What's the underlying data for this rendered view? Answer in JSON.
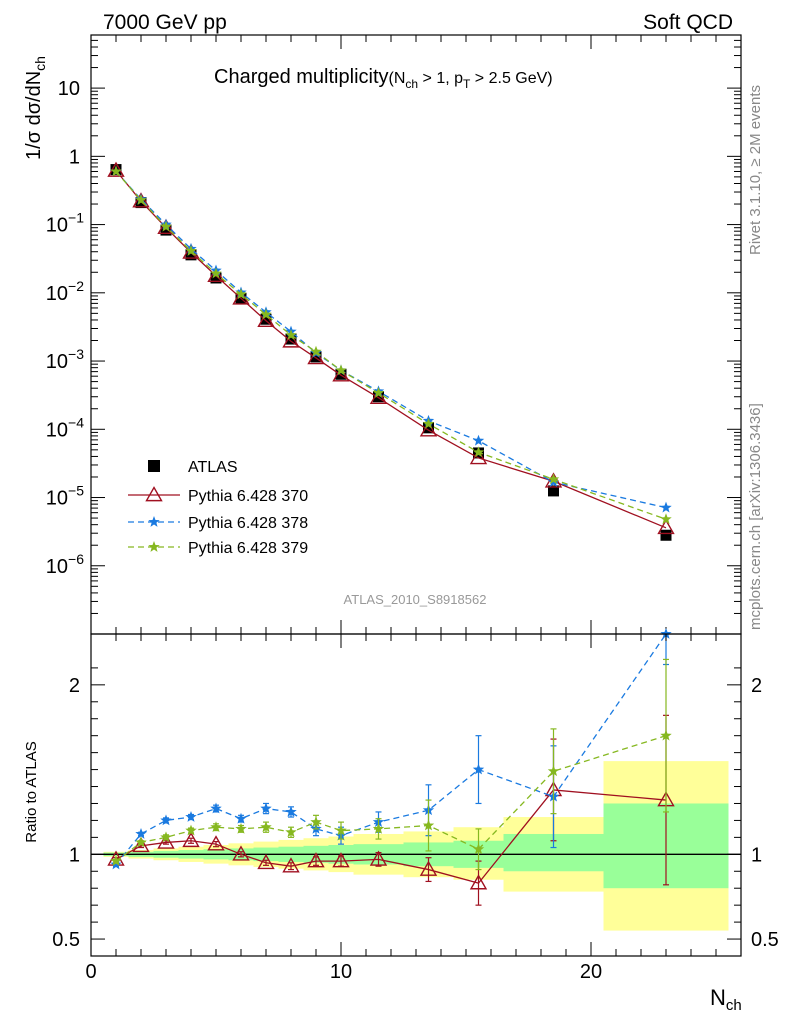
{
  "header": {
    "energy_label": "7000 GeV pp",
    "process_label": "Soft QCD"
  },
  "side_labels": {
    "rivet": "Rivet 3.1.10, ≥ 2M events",
    "mcplots": "mcplots.cern.ch [arXiv:1306.3436]"
  },
  "chart_data": {
    "type": "line",
    "title_main": "Charged multiplicity",
    "title_cond_pre": "(N",
    "title_cond_sub1": "ch",
    "title_cond_mid": " > 1, p",
    "title_cond_sub2": "T",
    "title_cond_post": " > 2.5 GeV)",
    "ylabel_main": "1/σ dσ/dN",
    "ylabel_sub": "ch",
    "ylabel_ratio": "Ratio to ATLAS",
    "xlabel": "N",
    "xlabel_sub": "ch",
    "analysis_tag": "ATLAS_2010_S8918562",
    "main_yscale": "log",
    "main_ylim": [
      1e-07,
      60
    ],
    "xlim": [
      0,
      26
    ],
    "ratio_ylim": [
      0.4,
      2.3
    ],
    "x_ticks": [
      0,
      10,
      20
    ],
    "main_y_tick_labels": [
      {
        "v": 10,
        "base": "10",
        "exp": ""
      },
      {
        "v": 1,
        "base": "1",
        "exp": ""
      },
      {
        "v": 0.1,
        "base": "10",
        "exp": "−1"
      },
      {
        "v": 0.01,
        "base": "10",
        "exp": "−2"
      },
      {
        "v": 0.001,
        "base": "10",
        "exp": "−3"
      },
      {
        "v": 0.0001,
        "base": "10",
        "exp": "−4"
      },
      {
        "v": 1e-05,
        "base": "10",
        "exp": "−5"
      },
      {
        "v": 1e-06,
        "base": "10",
        "exp": "−6"
      }
    ],
    "ratio_y_tick_labels": [
      {
        "v": 0.5,
        "label": "0.5"
      },
      {
        "v": 1,
        "label": "1"
      },
      {
        "v": 2,
        "label": "2"
      }
    ],
    "x": [
      1,
      2,
      3,
      4,
      5,
      6,
      7,
      8,
      9,
      10,
      11.5,
      13.5,
      15.5,
      18.5,
      23
    ],
    "data": {
      "name": "ATLAS",
      "values": [
        0.64,
        0.21,
        0.083,
        0.036,
        0.0165,
        0.0083,
        0.0041,
        0.0021,
        0.00115,
        0.00064,
        0.0003,
        0.000105,
        4.5e-05,
        1.25e-05,
        2.8e-06
      ],
      "ratio_bands": [
        {
          "x0": 0.5,
          "x1": 1.5,
          "y1": [
            0.99,
            1.01
          ],
          "y2": [
            0.985,
            1.015
          ]
        },
        {
          "x0": 1.5,
          "x1": 2.5,
          "y1": [
            0.985,
            1.015
          ],
          "y2": [
            0.975,
            1.025
          ]
        },
        {
          "x0": 2.5,
          "x1": 3.5,
          "y1": [
            0.98,
            1.02
          ],
          "y2": [
            0.965,
            1.035
          ]
        },
        {
          "x0": 3.5,
          "x1": 4.5,
          "y1": [
            0.975,
            1.025
          ],
          "y2": [
            0.955,
            1.045
          ]
        },
        {
          "x0": 4.5,
          "x1": 5.5,
          "y1": [
            0.97,
            1.03
          ],
          "y2": [
            0.945,
            1.055
          ]
        },
        {
          "x0": 5.5,
          "x1": 6.5,
          "y1": [
            0.965,
            1.035
          ],
          "y2": [
            0.935,
            1.065
          ]
        },
        {
          "x0": 6.5,
          "x1": 7.5,
          "y1": [
            0.96,
            1.04
          ],
          "y2": [
            0.925,
            1.075
          ]
        },
        {
          "x0": 7.5,
          "x1": 8.5,
          "y1": [
            0.955,
            1.045
          ],
          "y2": [
            0.915,
            1.085
          ]
        },
        {
          "x0": 8.5,
          "x1": 9.5,
          "y1": [
            0.95,
            1.05
          ],
          "y2": [
            0.905,
            1.095
          ]
        },
        {
          "x0": 9.5,
          "x1": 10.5,
          "y1": [
            0.945,
            1.055
          ],
          "y2": [
            0.895,
            1.105
          ]
        },
        {
          "x0": 10.5,
          "x1": 12.5,
          "y1": [
            0.94,
            1.06
          ],
          "y2": [
            0.88,
            1.12
          ]
        },
        {
          "x0": 12.5,
          "x1": 14.5,
          "y1": [
            0.93,
            1.07
          ],
          "y2": [
            0.865,
            1.135
          ]
        },
        {
          "x0": 14.5,
          "x1": 16.5,
          "y1": [
            0.92,
            1.08
          ],
          "y2": [
            0.85,
            1.16
          ]
        },
        {
          "x0": 16.5,
          "x1": 20.5,
          "y1": [
            0.9,
            1.12
          ],
          "y2": [
            0.78,
            1.22
          ]
        },
        {
          "x0": 20.5,
          "x1": 25.5,
          "y1": [
            0.8,
            1.3
          ],
          "y2": [
            0.55,
            1.55
          ]
        }
      ]
    },
    "series": [
      {
        "name": "Pythia 6.428 370",
        "color": "#a01020",
        "dash": "",
        "marker": "triangle",
        "values": [
          0.62,
          0.22,
          0.09,
          0.039,
          0.0178,
          0.0083,
          0.0039,
          0.00195,
          0.00111,
          0.00062,
          0.00029,
          9.7e-05,
          3.8e-05,
          1.73e-05,
          3.6e-06
        ],
        "ratio": [
          0.97,
          1.05,
          1.07,
          1.08,
          1.06,
          1.0,
          0.95,
          0.93,
          0.96,
          0.96,
          0.97,
          0.91,
          0.83,
          1.38,
          1.32
        ],
        "ratio_err": [
          0.01,
          0.01,
          0.01,
          0.015,
          0.015,
          0.015,
          0.015,
          0.02,
          0.025,
          0.03,
          0.04,
          0.07,
          0.13,
          0.3,
          0.5
        ]
      },
      {
        "name": "Pythia 6.428 378",
        "color": "#1a7ae0",
        "dash": "6,4",
        "marker": "star",
        "values": [
          0.6,
          0.235,
          0.1,
          0.044,
          0.0212,
          0.0101,
          0.0052,
          0.0027,
          0.00132,
          0.00073,
          0.00036,
          0.000133,
          6.8e-05,
          1.68e-05,
          7.1e-06
        ],
        "ratio": [
          0.94,
          1.12,
          1.2,
          1.22,
          1.27,
          1.21,
          1.27,
          1.25,
          1.15,
          1.11,
          1.19,
          1.26,
          1.5,
          1.34,
          2.32
        ],
        "ratio_err": [
          0.01,
          0.01,
          0.015,
          0.015,
          0.02,
          0.02,
          0.03,
          0.03,
          0.04,
          0.05,
          0.06,
          0.15,
          0.2,
          0.3,
          0.2
        ]
      },
      {
        "name": "Pythia 6.428 379",
        "color": "#86b820",
        "dash": "6,4",
        "marker": "star",
        "values": [
          0.6,
          0.228,
          0.093,
          0.041,
          0.0192,
          0.0095,
          0.0048,
          0.0024,
          0.00137,
          0.00073,
          0.00034,
          0.00012,
          4.6e-05,
          1.85e-05,
          4.8e-06
        ],
        "ratio": [
          0.96,
          1.07,
          1.1,
          1.14,
          1.16,
          1.15,
          1.16,
          1.13,
          1.19,
          1.14,
          1.15,
          1.17,
          1.03,
          1.49,
          1.7
        ],
        "ratio_err": [
          0.01,
          0.01,
          0.015,
          0.015,
          0.02,
          0.02,
          0.03,
          0.03,
          0.04,
          0.05,
          0.06,
          0.15,
          0.12,
          0.25,
          0.45
        ]
      }
    ],
    "legend_position": "lower-left"
  }
}
